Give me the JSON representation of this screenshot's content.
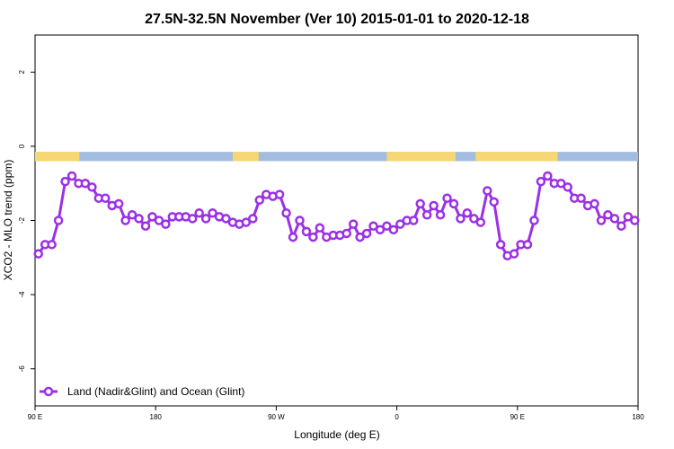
{
  "chart_data": {
    "type": "line",
    "title": "27.5N-32.5N November (Ver 10)   2015-01-01 to 2020-12-18",
    "xlabel": "Longitude (deg E)",
    "ylabel": "XCO2 - MLO trend (ppm)",
    "xlim": [
      90,
      450
    ],
    "ylim": [
      -7,
      3
    ],
    "x_ticks": [
      {
        "value": 90,
        "label": "90 E"
      },
      {
        "value": 162,
        "label": "180"
      },
      {
        "value": 234,
        "label": "90 W"
      },
      {
        "value": 306,
        "label": "0"
      },
      {
        "value": 378,
        "label": "90 E"
      },
      {
        "value": 450,
        "label": "180"
      }
    ],
    "y_ticks": [
      {
        "value": 2,
        "label": "2"
      },
      {
        "value": 0,
        "label": "0"
      },
      {
        "value": -2,
        "label": "-2"
      },
      {
        "value": -4,
        "label": "-4"
      },
      {
        "value": -6,
        "label": "-6"
      }
    ],
    "grid": false,
    "legend_position": "bottom-left",
    "surface_strip": {
      "y_top": -0.15,
      "y_bottom": -0.4,
      "ocean_color": "#a3bde0",
      "land_color": "#f7d774",
      "land_segments": [
        [
          90,
          116.5
        ],
        [
          208,
          223.5
        ],
        [
          300,
          341
        ],
        [
          353,
          402
        ]
      ]
    },
    "series": [
      {
        "name": "Land (Nadir&Glint) and Ocean (Glint)",
        "color": "#9b30e6",
        "x": [
          92,
          96,
          100,
          104,
          108,
          112,
          116,
          120,
          124,
          128,
          132,
          136,
          140,
          144,
          148,
          152,
          156,
          160,
          164,
          168,
          172,
          176,
          180,
          184,
          188,
          192,
          196,
          200,
          204,
          208,
          212,
          216,
          220,
          224,
          228,
          232,
          236,
          240,
          244,
          248,
          252,
          256,
          260,
          264,
          268,
          272,
          276,
          280,
          284,
          288,
          292,
          296,
          300,
          304,
          308,
          312,
          316,
          320,
          324,
          328,
          332,
          336,
          340,
          344,
          348,
          352,
          356,
          360,
          364,
          368,
          372,
          376,
          380,
          384,
          388,
          392,
          396,
          400,
          404,
          408,
          412,
          416,
          420,
          424,
          428,
          432,
          436,
          440,
          444,
          448
        ],
        "y": [
          -2.9,
          -2.65,
          -2.65,
          -2.0,
          -0.95,
          -0.8,
          -1.0,
          -1.0,
          -1.1,
          -1.4,
          -1.4,
          -1.6,
          -1.55,
          -2.0,
          -1.85,
          -1.95,
          -2.15,
          -1.9,
          -2.0,
          -2.1,
          -1.9,
          -1.9,
          -1.9,
          -1.95,
          -1.8,
          -1.95,
          -1.8,
          -1.9,
          -1.95,
          -2.05,
          -2.1,
          -2.05,
          -1.95,
          -1.45,
          -1.3,
          -1.35,
          -1.3,
          -1.8,
          -2.45,
          -2.0,
          -2.3,
          -2.45,
          -2.2,
          -2.45,
          -2.4,
          -2.4,
          -2.35,
          -2.1,
          -2.45,
          -2.35,
          -2.15,
          -2.25,
          -2.15,
          -2.25,
          -2.1,
          -2.0,
          -2.0,
          -1.55,
          -1.85,
          -1.6,
          -1.85,
          -1.4,
          -1.55,
          -1.95,
          -1.8,
          -1.95,
          -2.05,
          -1.2,
          -1.5,
          -2.65,
          -2.95,
          -2.9,
          -2.65,
          -2.65,
          -2.0,
          -0.95,
          -0.8,
          -1.0,
          -1.0,
          -1.1,
          -1.4,
          -1.4,
          -1.6,
          -1.55,
          -2.0,
          -1.85,
          -1.95,
          -2.15,
          -1.9,
          -2.0
        ]
      }
    ]
  }
}
